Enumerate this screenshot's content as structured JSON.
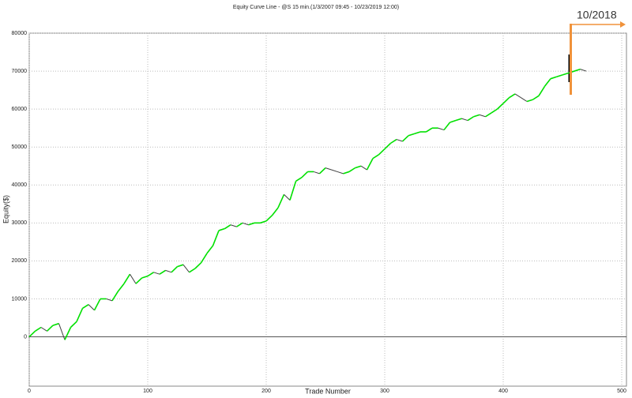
{
  "chart_data": {
    "type": "line",
    "title": "Equity Curve Line - @S 15 min.(1/3/2007 09:45 - 10/23/2019 12:00)",
    "x_label": "Trade Number",
    "y_label": "Equity($)",
    "x": [
      0,
      5,
      10,
      15,
      20,
      25,
      30,
      35,
      40,
      45,
      50,
      55,
      60,
      65,
      70,
      75,
      80,
      85,
      90,
      95,
      100,
      105,
      110,
      115,
      120,
      125,
      130,
      135,
      140,
      145,
      150,
      155,
      160,
      165,
      170,
      175,
      180,
      185,
      190,
      195,
      200,
      205,
      210,
      215,
      220,
      225,
      230,
      235,
      240,
      245,
      250,
      255,
      260,
      265,
      270,
      275,
      280,
      285,
      290,
      295,
      300,
      305,
      310,
      315,
      320,
      325,
      330,
      335,
      340,
      345,
      350,
      355,
      360,
      365,
      370,
      375,
      380,
      385,
      390,
      395,
      400,
      405,
      410,
      415,
      420,
      425,
      430,
      435,
      440,
      445,
      450,
      455,
      460,
      465,
      470
    ],
    "values": [
      0,
      1500,
      2500,
      1500,
      3000,
      3500,
      -800,
      2500,
      4000,
      7500,
      8500,
      7000,
      10000,
      10000,
      9500,
      12000,
      14000,
      16500,
      14000,
      15500,
      16000,
      17000,
      16500,
      17500,
      17000,
      18500,
      19000,
      17000,
      18000,
      19500,
      22000,
      24000,
      28000,
      28500,
      29500,
      29000,
      30000,
      29500,
      30000,
      30000,
      30500,
      32000,
      34000,
      37500,
      36000,
      41000,
      42000,
      43500,
      43500,
      43000,
      44500,
      44000,
      43500,
      43000,
      43500,
      44500,
      45000,
      44000,
      47000,
      48000,
      49500,
      51000,
      52000,
      51500,
      53000,
      53500,
      54000,
      54000,
      55000,
      55000,
      54500,
      56500,
      57000,
      57500,
      57000,
      58000,
      58500,
      58000,
      59000,
      60000,
      61500,
      63000,
      64000,
      63000,
      62000,
      62500,
      63500,
      66000,
      68000,
      68500,
      69000,
      69500,
      70000,
      70500,
      70000
    ],
    "up_color": "#00e000",
    "down_color": "#404040",
    "xlim": [
      0,
      500
    ],
    "xticks": [
      0,
      100,
      200,
      300,
      400,
      500
    ],
    "ylim": [
      -13000,
      80000
    ],
    "yticks": [
      0,
      10000,
      20000,
      30000,
      40000,
      50000,
      60000,
      70000,
      80000
    ],
    "grid": true,
    "annotation": {
      "text": "10/2018",
      "x": 457
    }
  }
}
